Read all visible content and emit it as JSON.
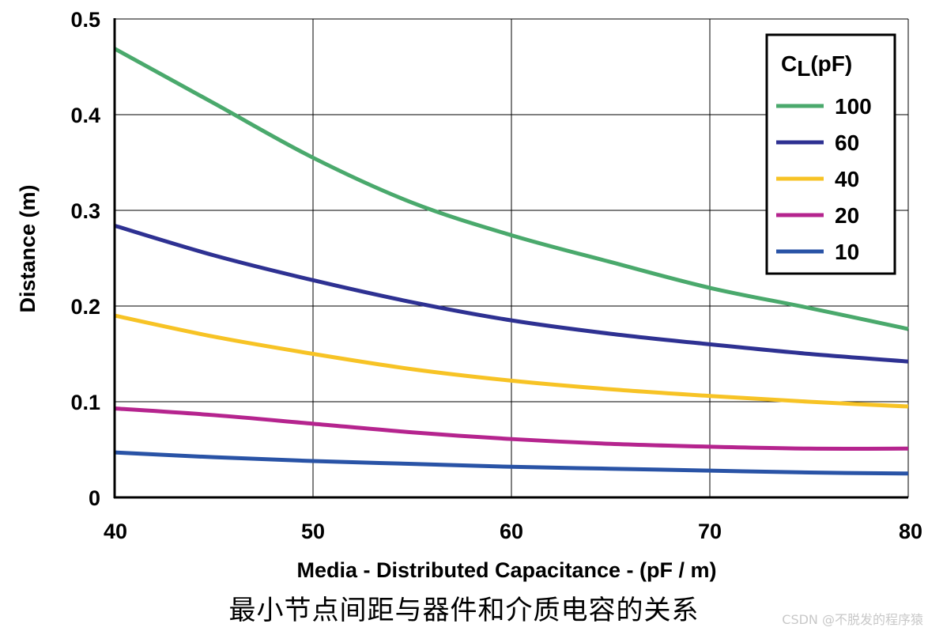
{
  "chart_data": {
    "type": "line",
    "title": "",
    "xlabel": "Media - Distributed Capacitance - (pF / m)",
    "ylabel": "Distance (m)",
    "xlim": [
      40,
      80
    ],
    "ylim": [
      0,
      0.5
    ],
    "x_ticks": [
      "40",
      "50",
      "60",
      "70",
      "80"
    ],
    "y_ticks": [
      "0",
      "0.1",
      "0.2",
      "0.3",
      "0.4",
      "0.5"
    ],
    "grid": true,
    "legend": {
      "title_main": "C",
      "title_sub": "L",
      "title_unit": "(pF)",
      "position": "top-right"
    },
    "x": [
      40,
      45,
      50,
      55,
      60,
      65,
      70,
      75,
      80
    ],
    "series": [
      {
        "name": "100",
        "color": "#4aa96c",
        "values": [
          0.469,
          0.412,
          0.355,
          0.308,
          0.274,
          0.246,
          0.219,
          0.198,
          0.176
        ]
      },
      {
        "name": "60",
        "color": "#2e3192",
        "values": [
          0.284,
          0.253,
          0.227,
          0.204,
          0.185,
          0.171,
          0.16,
          0.15,
          0.142
        ]
      },
      {
        "name": "40",
        "color": "#f7c325",
        "values": [
          0.19,
          0.168,
          0.15,
          0.134,
          0.122,
          0.113,
          0.106,
          0.1,
          0.095
        ]
      },
      {
        "name": "20",
        "color": "#b5248e",
        "values": [
          0.093,
          0.086,
          0.077,
          0.068,
          0.061,
          0.056,
          0.053,
          0.051,
          0.051
        ]
      },
      {
        "name": "10",
        "color": "#2953a6",
        "values": [
          0.047,
          0.042,
          0.038,
          0.035,
          0.032,
          0.03,
          0.028,
          0.026,
          0.025
        ]
      }
    ]
  },
  "caption": "最小节点间距与器件和介质电容的关系",
  "watermark": "CSDN @不脱发的程序猿"
}
